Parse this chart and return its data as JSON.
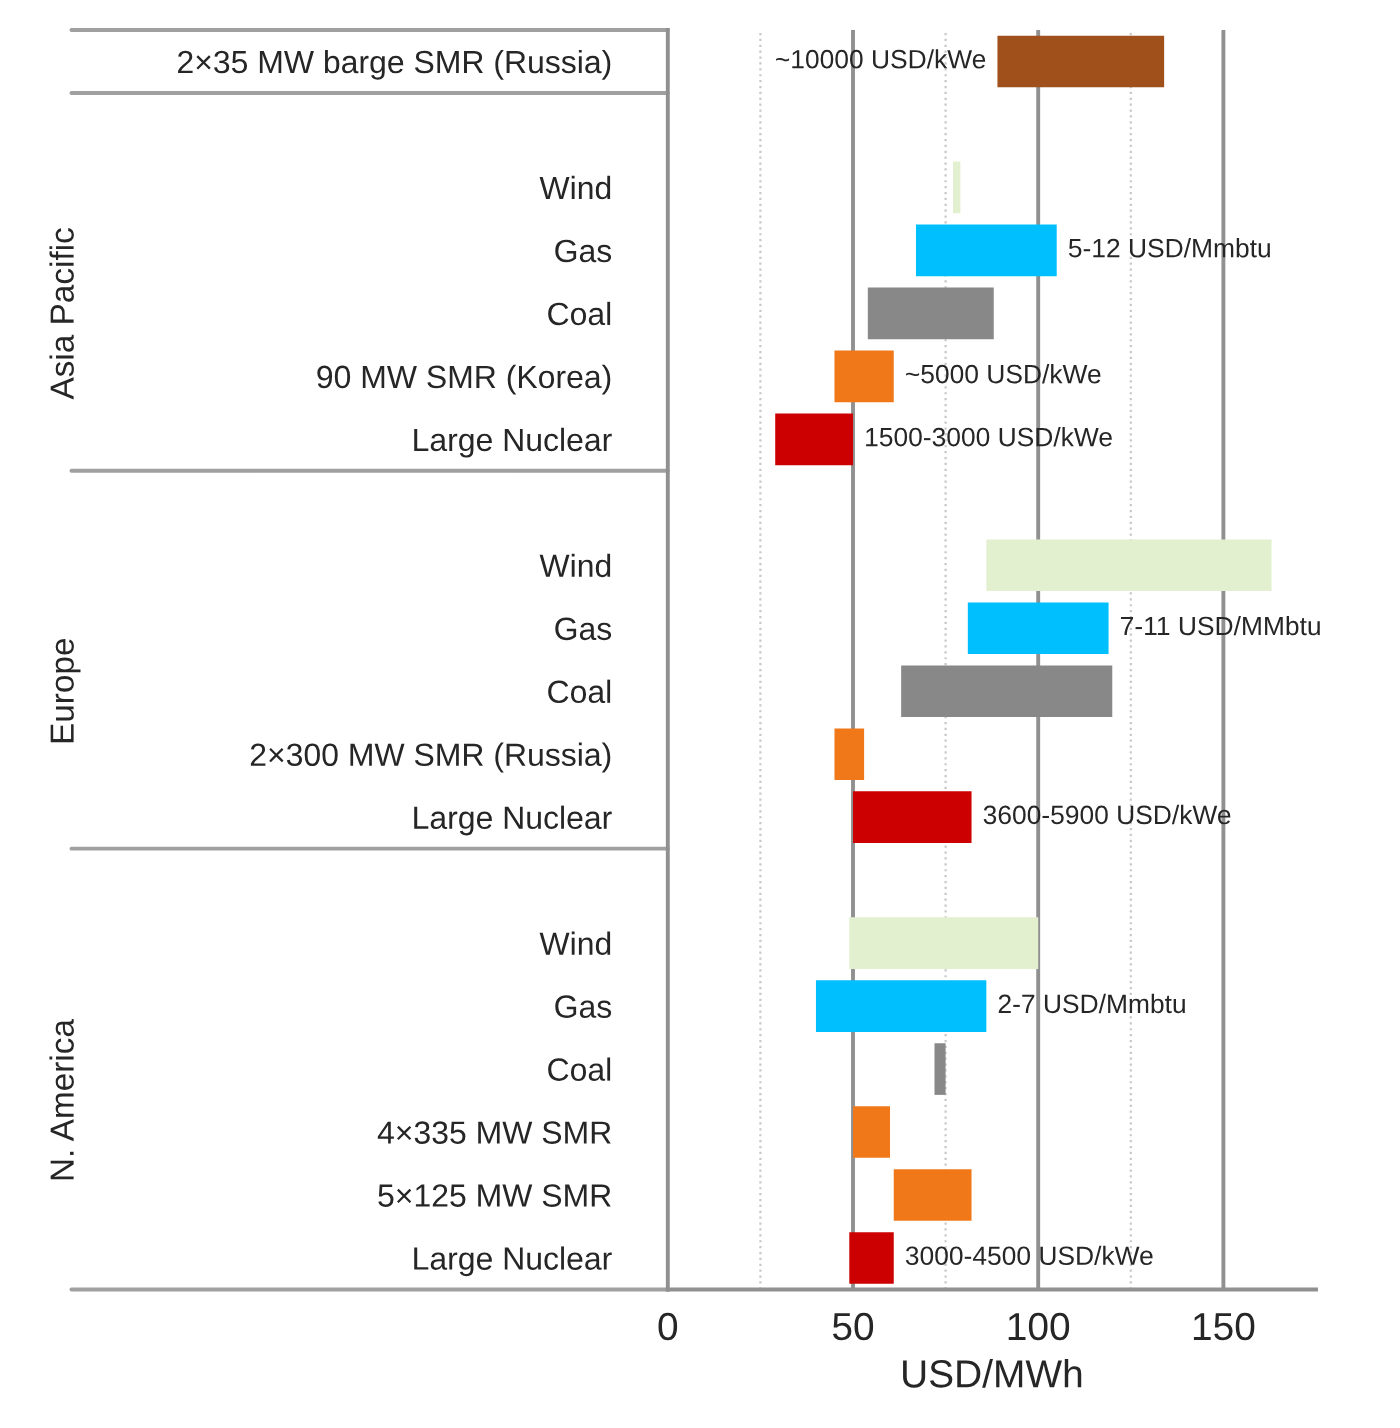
{
  "chart_data": {
    "type": "bar",
    "orientation": "horizontal",
    "xlabel": "USD/MWh",
    "categories": [
      "2×35 MW barge SMR (Russia)",
      null,
      "Wind",
      "Gas",
      "Coal",
      "90 MW SMR (Korea)",
      "Large Nuclear",
      null,
      "Wind",
      "Gas",
      "Coal",
      "2×300 MW SMR (Russia)",
      "Large Nuclear",
      null,
      "Wind",
      "Gas",
      "Coal",
      "4×335 MW SMR",
      "5×125 MW SMR",
      "Large Nuclear"
    ],
    "base": [
      89,
      null,
      77,
      67,
      54,
      45,
      29,
      null,
      86,
      81,
      63,
      45,
      50,
      null,
      49,
      40,
      72,
      50,
      61,
      49
    ],
    "values": [
      45,
      null,
      2,
      38,
      34,
      16,
      21,
      null,
      77,
      38,
      57,
      8,
      32,
      null,
      51,
      46,
      3,
      10,
      21,
      12
    ],
    "colors": [
      "#a0501a",
      "#ffffff",
      "#e3f0cf",
      "#00bfff",
      "#888888",
      "#f07818",
      "#cc0000",
      "#ffffff",
      "#e3f0cf",
      "#00bfff",
      "#888888",
      "#f07818",
      "#cc0000",
      "#ffffff",
      "#e3f0cf",
      "#00bfff",
      "#888888",
      "#f07818",
      "#f07818",
      "#cc0000"
    ],
    "xlim": [
      0,
      175
    ],
    "xticks": [
      0,
      {
        "value": 25,
        "label": null
      },
      50,
      {
        "value": 75,
        "label": null
      },
      100,
      {
        "value": 125,
        "label": null
      },
      150
    ],
    "grid": "x",
    "annotations": [
      "Asia Pacific",
      "Europe",
      "N. America",
      {
        "text": "~10000 USD/kWe",
        "x": 89,
        "y": "2×35 MW barge SMR (Russia)"
      },
      {
        "text": "5-12 USD/Mmbtu",
        "x": 105,
        "y": "Gas"
      },
      {
        "text": "~5000 USD/kWe",
        "x": 61,
        "y": "90 MW SMR (Korea)"
      },
      {
        "text": "1500-3000 USD/kWe",
        "x": 50,
        "y": "Large Nuclear"
      },
      "7-11 USD/MMbtu",
      "3600-5900 USD/kWe",
      "2-7 USD/Mmbtu",
      "3000-4500 USD/kWe"
    ]
  }
}
